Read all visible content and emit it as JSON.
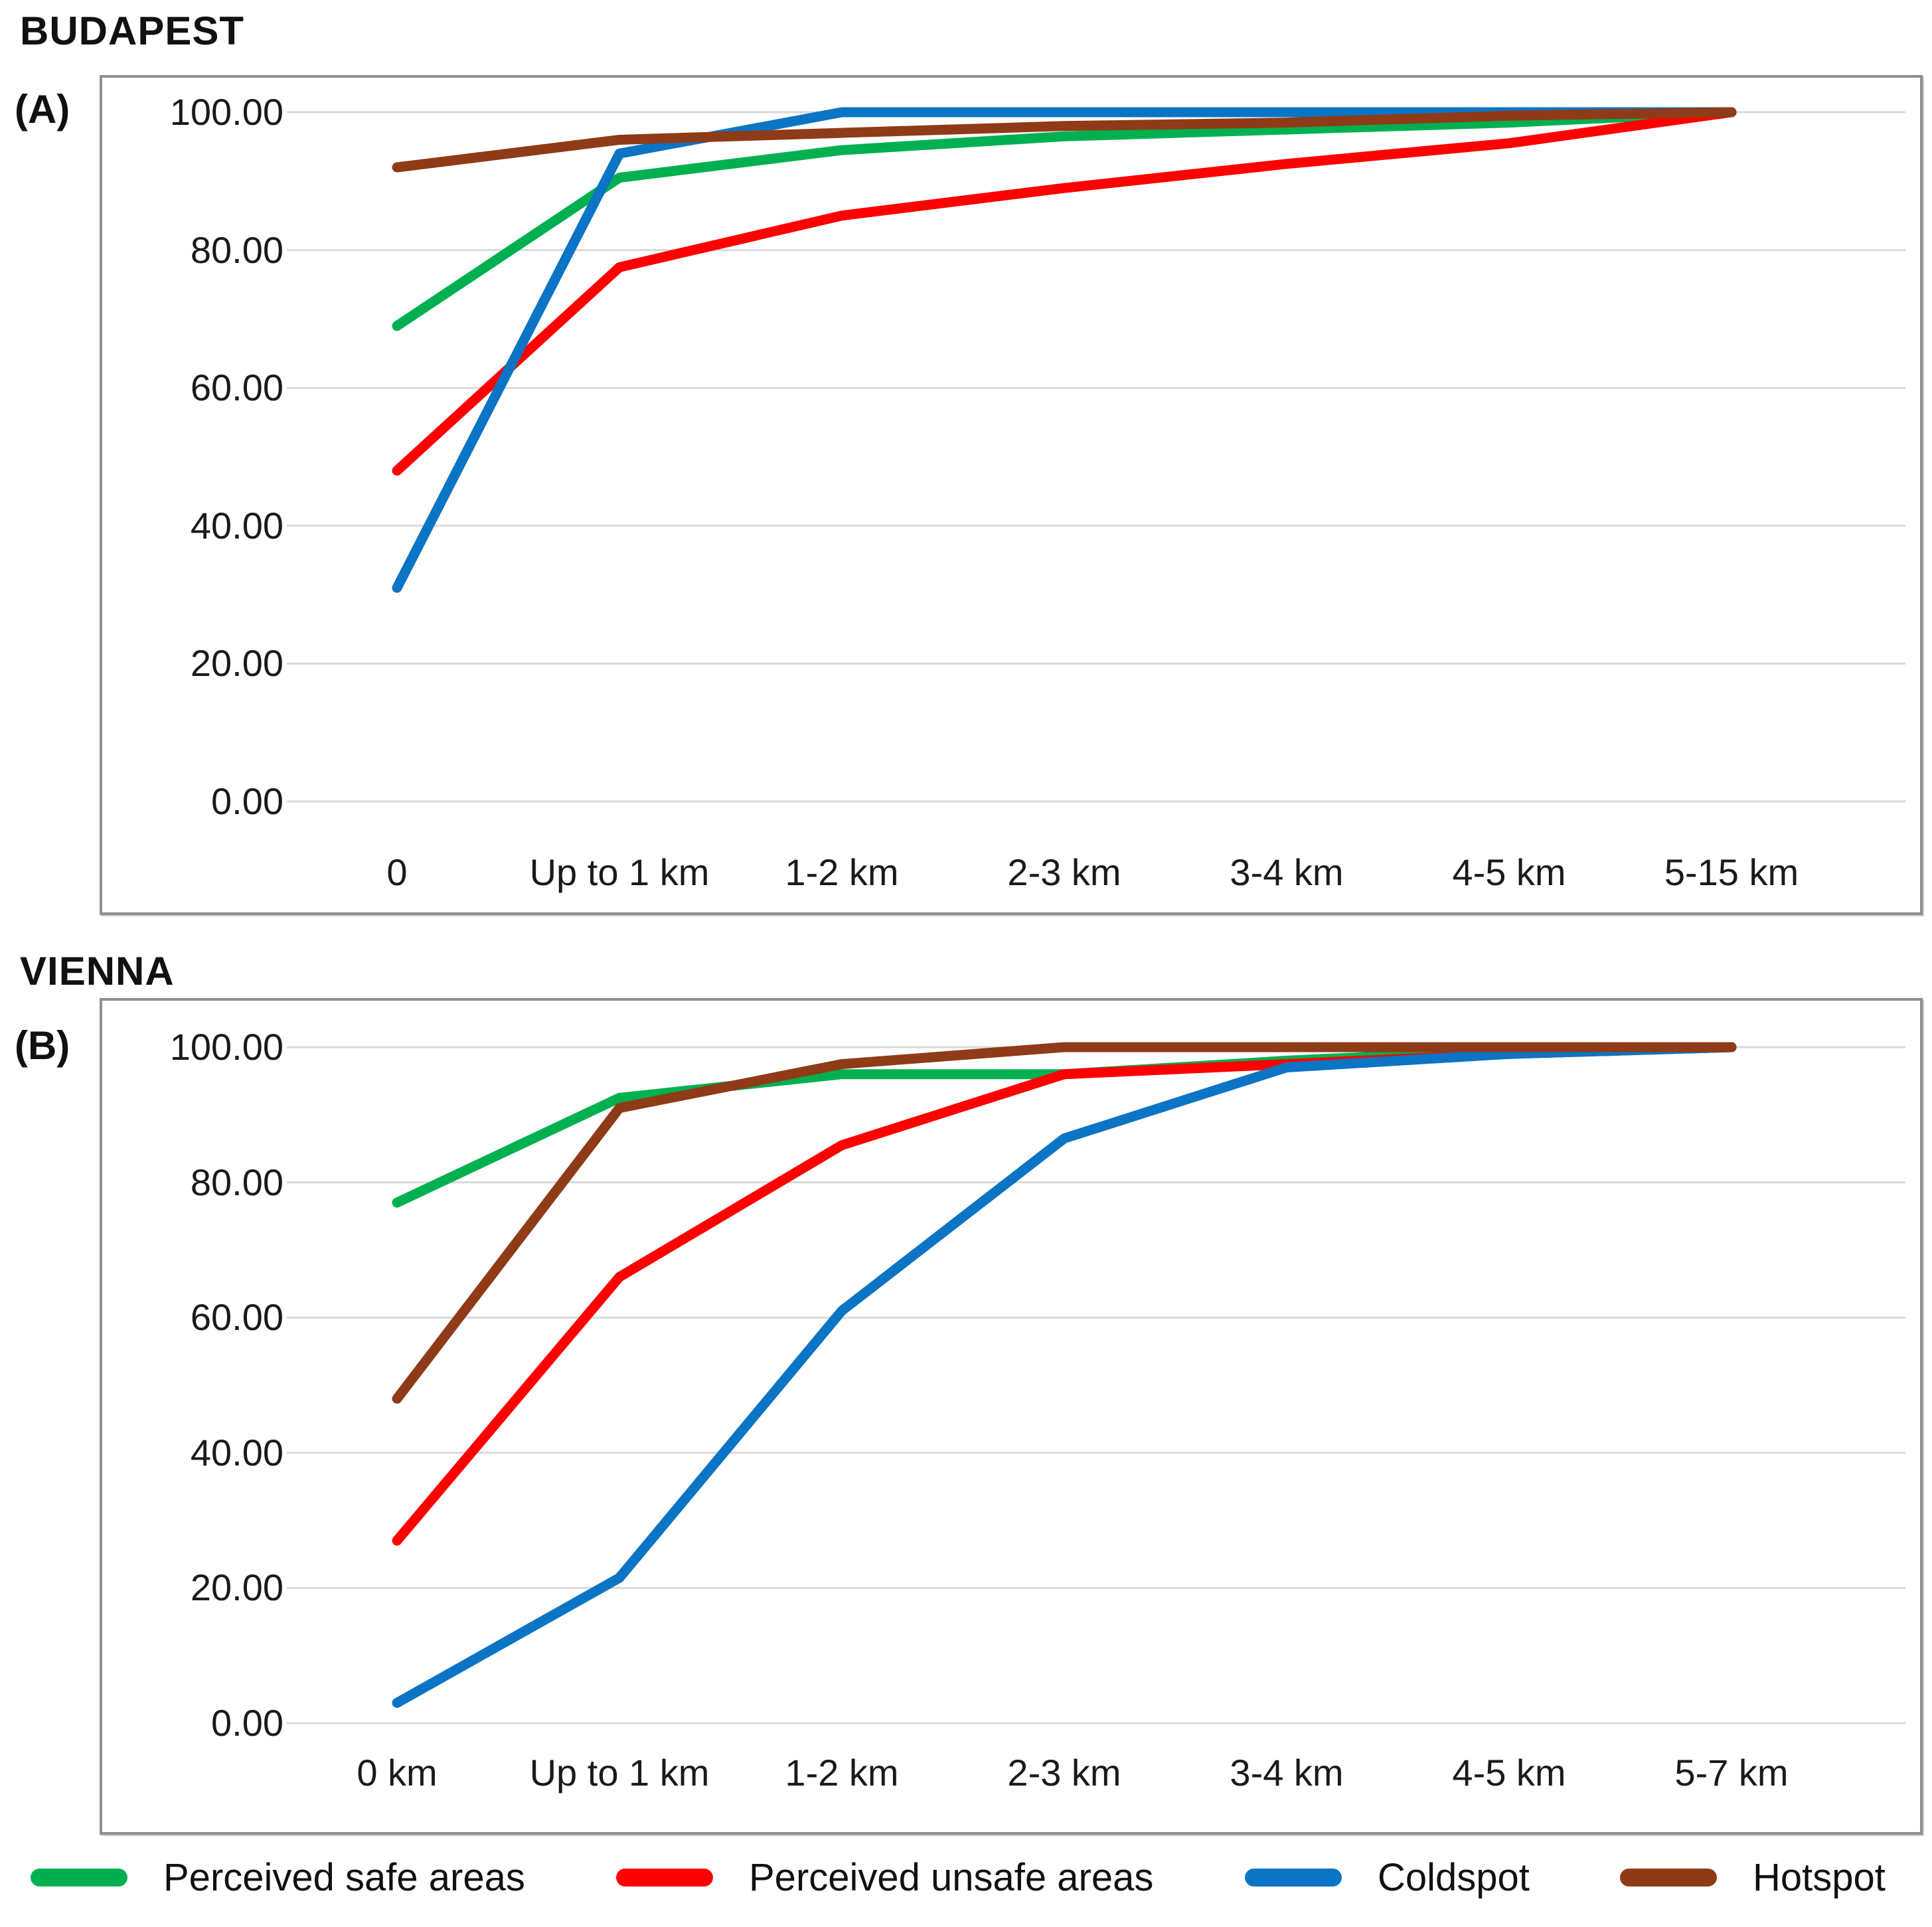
{
  "figure": {
    "background_color": "#FFFFFF",
    "gridline_color": "#D9D9D9",
    "frame_border_color": "#8F8F8F"
  },
  "chart_data": [
    {
      "type": "line",
      "title": "BUDAPEST",
      "panel_label": "(A)",
      "xlabel": "",
      "ylabel": "",
      "ylim": [
        0,
        100
      ],
      "grid": true,
      "y_tick_labels": [
        "100.00",
        "80.00",
        "60.00",
        "40.00",
        "20.00",
        "0.00"
      ],
      "categories": [
        "0",
        "Up to 1 km",
        "1-2 km",
        "2-3 km",
        "3-4 km",
        "4-5 km",
        "5-15 km"
      ],
      "series": [
        {
          "name": "Perceived safe areas",
          "color": "#00B050",
          "values": [
            69,
            90.5,
            94.5,
            96.5,
            97.5,
            98.5,
            100
          ]
        },
        {
          "name": "Perceived unsafe areas",
          "color": "#FF0000",
          "values": [
            48,
            77.5,
            85,
            89,
            92.5,
            95.5,
            100
          ]
        },
        {
          "name": "Coldspot",
          "color": "#0B74C4",
          "values": [
            31,
            94,
            100,
            100,
            100,
            100,
            100
          ]
        },
        {
          "name": "Hotspot",
          "color": "#8F3B17",
          "values": [
            92,
            96,
            97,
            98,
            98.5,
            99.5,
            100
          ]
        }
      ]
    },
    {
      "type": "line",
      "title": "VIENNA",
      "panel_label": "(B)",
      "xlabel": "",
      "ylabel": "",
      "ylim": [
        0,
        100
      ],
      "grid": true,
      "y_tick_labels": [
        "100.00",
        "80.00",
        "60.00",
        "40.00",
        "20.00",
        "0.00"
      ],
      "categories": [
        "0 km",
        "Up to 1 km",
        "1-2 km",
        "2-3 km",
        "3-4 km",
        "4-5 km",
        "5-7 km"
      ],
      "series": [
        {
          "name": "Perceived safe areas",
          "color": "#00B050",
          "values": [
            77,
            92.5,
            96,
            96,
            98,
            99.5,
            100
          ]
        },
        {
          "name": "Perceived unsafe areas",
          "color": "#FF0000",
          "values": [
            27,
            66,
            85.5,
            96,
            97.5,
            99,
            100
          ]
        },
        {
          "name": "Coldspot",
          "color": "#0B74C4",
          "values": [
            3,
            21.5,
            61,
            86.5,
            97,
            99,
            100
          ]
        },
        {
          "name": "Hotspot",
          "color": "#8F3B17",
          "values": [
            48,
            91,
            97.5,
            100,
            100,
            100,
            100
          ]
        }
      ]
    }
  ],
  "legend": {
    "position": "bottom",
    "items": [
      {
        "label": "Perceived safe areas",
        "color": "#00B050"
      },
      {
        "label": "Perceived unsafe areas",
        "color": "#FF0000"
      },
      {
        "label": "Coldspot",
        "color": "#0B74C4"
      },
      {
        "label": "Hotspot",
        "color": "#8F3B17"
      }
    ]
  }
}
